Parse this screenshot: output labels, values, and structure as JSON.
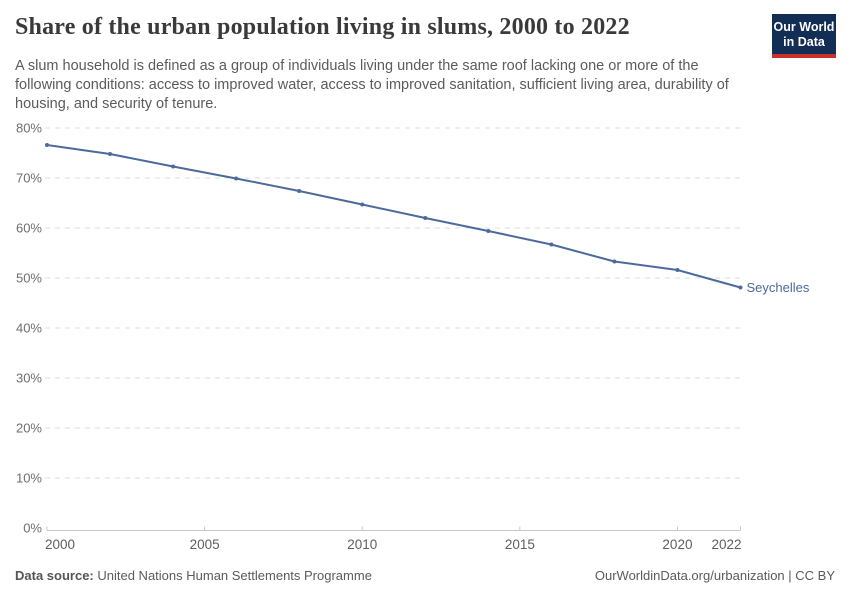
{
  "header": {
    "title": "Share of the urban population living in slums, 2000 to 2022",
    "subtitle": "A slum household is defined as a group of individuals living under the same roof lacking one or more of the following conditions: access to improved water, access to improved sanitation, sufficient living area, durability of housing, and security of tenure."
  },
  "logo": {
    "line1": "Our World",
    "line2": "in Data",
    "bg_color": "#132E54",
    "accent_color": "#C7302B"
  },
  "chart_data": {
    "type": "line",
    "title": "Share of the urban population living in slums, 2000 to 2022",
    "series": [
      {
        "name": "Seychelles",
        "color": "#4C6A9C",
        "x": [
          2000,
          2002,
          2004,
          2006,
          2008,
          2010,
          2012,
          2014,
          2016,
          2018,
          2020,
          2022
        ],
        "values": [
          76.6,
          74.8,
          72.3,
          69.9,
          67.4,
          64.7,
          62.0,
          59.4,
          56.7,
          53.3,
          51.6,
          48.1
        ]
      }
    ],
    "xlabel": "",
    "ylabel": "",
    "xlim": [
      2000,
      2022
    ],
    "ylim": [
      0,
      80
    ],
    "x_ticks": [
      2000,
      2005,
      2010,
      2015,
      2020,
      2022
    ],
    "y_ticks": [
      0,
      10,
      20,
      30,
      40,
      50,
      60,
      70,
      80
    ],
    "y_tick_suffix": "%",
    "grid": "dashed-horizontal",
    "legend_position": "end-of-line-label"
  },
  "footer": {
    "source_label": "Data source:",
    "source_value": " United Nations Human Settlements Programme",
    "attribution": "OurWorldinData.org/urbanization | CC BY"
  },
  "colors": {
    "line": "#4C6A9C",
    "grid": "#DCDCDC",
    "axis": "#C8C8C8",
    "y_tick_text": "#6E6E6E",
    "x_tick_text": "#5F5F5F",
    "title_text": "#3A3A3A",
    "subtitle_text": "#5B5B5B",
    "footer_text": "#5B5B5B"
  }
}
